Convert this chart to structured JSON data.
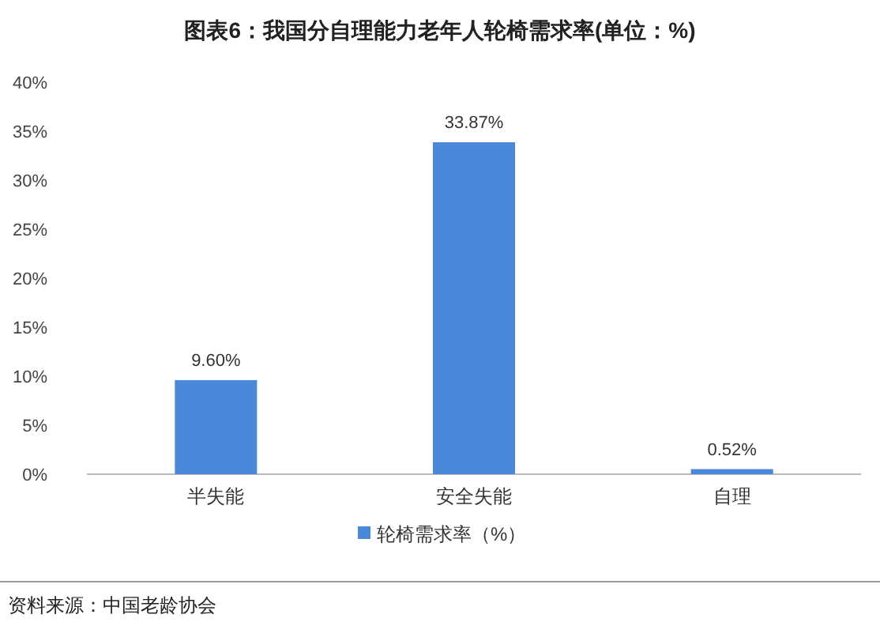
{
  "chart_data": {
    "type": "bar",
    "title": "图表6：我国分自理能力老年人轮椅需求率(单位：%)",
    "categories": [
      "半失能",
      "安全失能",
      "自理"
    ],
    "series": [
      {
        "name": "轮椅需求率（%）",
        "color": "#4a88dc",
        "values": [
          9.6,
          33.87,
          0.52
        ],
        "value_labels": [
          "9.60%",
          "33.87%",
          "0.52%"
        ]
      }
    ],
    "ylim": [
      0,
      40
    ],
    "yticks": [
      {
        "value": 0,
        "label": "0%"
      },
      {
        "value": 5,
        "label": "5%"
      },
      {
        "value": 10,
        "label": "10%"
      },
      {
        "value": 15,
        "label": "15%"
      },
      {
        "value": 20,
        "label": "20%"
      },
      {
        "value": 25,
        "label": "25%"
      },
      {
        "value": 30,
        "label": "30%"
      },
      {
        "value": 35,
        "label": "35%"
      },
      {
        "value": 40,
        "label": "40%"
      }
    ],
    "grid": false,
    "legend": "bottom",
    "annotations": [
      "资料来源：中国老龄协会"
    ]
  }
}
